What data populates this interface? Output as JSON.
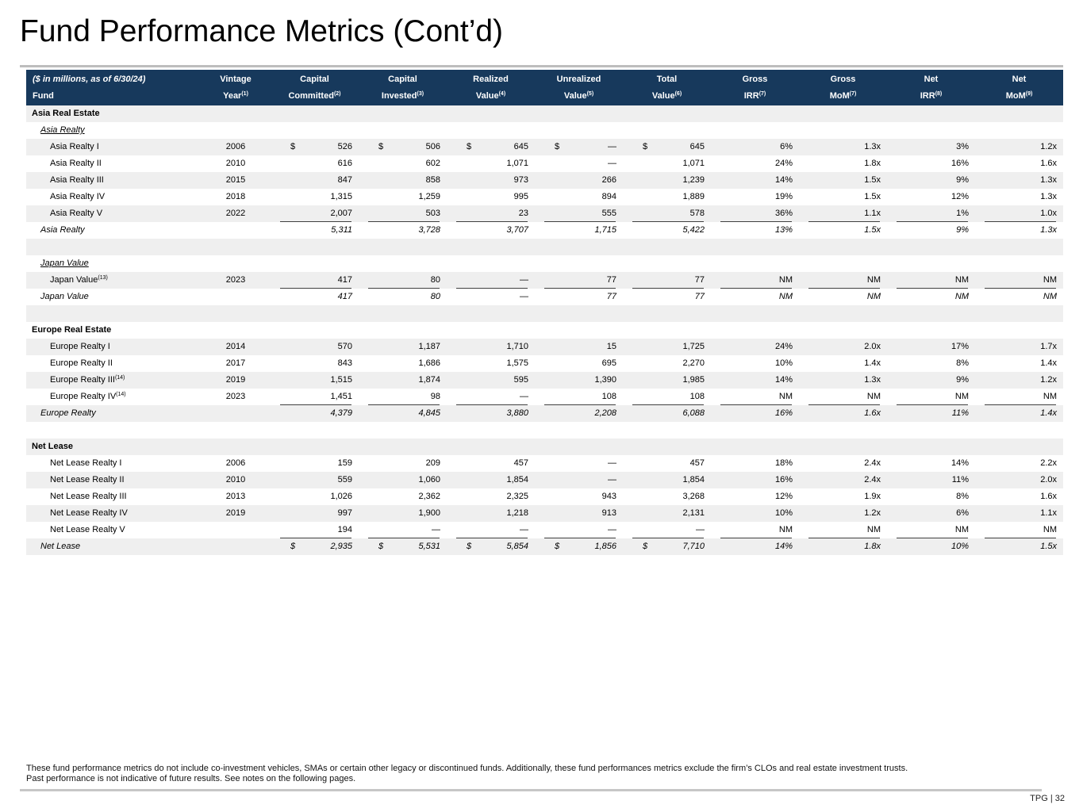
{
  "page": {
    "title": "Fund Performance Metrics (Cont’d)",
    "footnote_line1": "These fund performance metrics do not include co-investment vehicles, SMAs or certain other legacy or discontinued funds. Additionally, these fund performances metrics exclude the firm’s CLOs and real estate investment trusts.",
    "footnote_line2": "Past performance is not indicative of future results. See notes on the following pages.",
    "page_tag": "TPG | 32"
  },
  "colors": {
    "header_bg": "#17395c",
    "row_stripe": "#efefef",
    "rule_line": "#404040",
    "divider_gray": "#bdbdbd"
  },
  "table": {
    "header": {
      "corner_top": "($ in millions, as of 6/30/24)",
      "corner_bottom": "Fund",
      "columns": [
        {
          "top": "Vintage",
          "bottom": "Year",
          "sup": "(1)",
          "w": "vintage"
        },
        {
          "top": "Capital",
          "bottom": "Committed",
          "sup": "(2)",
          "w": "val"
        },
        {
          "top": "Capital",
          "bottom": "Invested",
          "sup": "(3)",
          "w": "val"
        },
        {
          "top": "Realized",
          "bottom": "Value",
          "sup": "(4)",
          "w": "val"
        },
        {
          "top": "Unrealized",
          "bottom": "Value",
          "sup": "(5)",
          "w": "val"
        },
        {
          "top": "Total",
          "bottom": "Value",
          "sup": "(6)",
          "w": "val"
        },
        {
          "top": "Gross",
          "bottom": "IRR",
          "sup": "(7)",
          "w": "val"
        },
        {
          "top": "Gross",
          "bottom": "MoM",
          "sup": "(7)",
          "w": "val"
        },
        {
          "top": "Net",
          "bottom": "IRR",
          "sup": "(8)",
          "w": "val"
        },
        {
          "top": "Net",
          "bottom": "MoM",
          "sup": "(9)",
          "w": "val"
        }
      ]
    },
    "rows": [
      {
        "type": "section",
        "name": "Asia Real Estate"
      },
      {
        "type": "subhead",
        "name": "Asia Realty"
      },
      {
        "type": "fund",
        "name": "Asia Realty I",
        "vintage": "2006",
        "dollars": true,
        "cells": [
          "526",
          "506",
          "645",
          "—",
          "645",
          "6%",
          "1.3x",
          "3%",
          "1.2x"
        ]
      },
      {
        "type": "fund",
        "name": "Asia Realty II",
        "vintage": "2010",
        "cells": [
          "616",
          "602",
          "1,071",
          "—",
          "1,071",
          "24%",
          "1.8x",
          "16%",
          "1.6x"
        ]
      },
      {
        "type": "fund",
        "name": "Asia Realty III",
        "vintage": "2015",
        "cells": [
          "847",
          "858",
          "973",
          "266",
          "1,239",
          "14%",
          "1.5x",
          "9%",
          "1.3x"
        ]
      },
      {
        "type": "fund",
        "name": "Asia Realty IV",
        "vintage": "2018",
        "cells": [
          "1,315",
          "1,259",
          "995",
          "894",
          "1,889",
          "19%",
          "1.5x",
          "12%",
          "1.3x"
        ]
      },
      {
        "type": "fund",
        "name": "Asia Realty V",
        "vintage": "2022",
        "rule": true,
        "cells": [
          "2,007",
          "503",
          "23",
          "555",
          "578",
          "36%",
          "1.1x",
          "1%",
          "1.0x"
        ]
      },
      {
        "type": "total",
        "name": "Asia Realty",
        "cells": [
          "5,311",
          "3,728",
          "3,707",
          "1,715",
          "5,422",
          "13%",
          "1.5x",
          "9%",
          "1.3x"
        ]
      },
      {
        "type": "spacer"
      },
      {
        "type": "subhead",
        "name": "Japan Value"
      },
      {
        "type": "fund",
        "name": "Japan Value",
        "sup": "(13)",
        "vintage": "2023",
        "rule": true,
        "cells": [
          "417",
          "80",
          "—",
          "77",
          "77",
          "NM",
          "NM",
          "NM",
          "NM"
        ]
      },
      {
        "type": "total",
        "name": "Japan Value",
        "cells": [
          "417",
          "80",
          "—",
          "77",
          "77",
          "NM",
          "NM",
          "NM",
          "NM"
        ]
      },
      {
        "type": "spacer"
      },
      {
        "type": "section",
        "name": "Europe Real Estate"
      },
      {
        "type": "fund",
        "name": "Europe Realty I",
        "vintage": "2014",
        "cells": [
          "570",
          "1,187",
          "1,710",
          "15",
          "1,725",
          "24%",
          "2.0x",
          "17%",
          "1.7x"
        ]
      },
      {
        "type": "fund",
        "name": "Europe Realty II",
        "vintage": "2017",
        "cells": [
          "843",
          "1,686",
          "1,575",
          "695",
          "2,270",
          "10%",
          "1.4x",
          "8%",
          "1.4x"
        ]
      },
      {
        "type": "fund",
        "name": "Europe Realty III",
        "sup": "(14)",
        "vintage": "2019",
        "cells": [
          "1,515",
          "1,874",
          "595",
          "1,390",
          "1,985",
          "14%",
          "1.3x",
          "9%",
          "1.2x"
        ]
      },
      {
        "type": "fund",
        "name": "Europe Realty IV",
        "sup": "(14)",
        "vintage": "2023",
        "rule": true,
        "cells": [
          "1,451",
          "98",
          "—",
          "108",
          "108",
          "NM",
          "NM",
          "NM",
          "NM"
        ]
      },
      {
        "type": "total",
        "name": "Europe Realty",
        "cells": [
          "4,379",
          "4,845",
          "3,880",
          "2,208",
          "6,088",
          "16%",
          "1.6x",
          "11%",
          "1.4x"
        ]
      },
      {
        "type": "spacer"
      },
      {
        "type": "section",
        "name": "Net Lease"
      },
      {
        "type": "fund",
        "name": "Net Lease Realty I",
        "vintage": "2006",
        "cells": [
          "159",
          "209",
          "457",
          "—",
          "457",
          "18%",
          "2.4x",
          "14%",
          "2.2x"
        ]
      },
      {
        "type": "fund",
        "name": "Net Lease Realty II",
        "vintage": "2010",
        "cells": [
          "559",
          "1,060",
          "1,854",
          "—",
          "1,854",
          "16%",
          "2.4x",
          "11%",
          "2.0x"
        ]
      },
      {
        "type": "fund",
        "name": "Net Lease Realty III",
        "vintage": "2013",
        "cells": [
          "1,026",
          "2,362",
          "2,325",
          "943",
          "3,268",
          "12%",
          "1.9x",
          "8%",
          "1.6x"
        ]
      },
      {
        "type": "fund",
        "name": "Net Lease Realty IV",
        "vintage": "2019",
        "cells": [
          "997",
          "1,900",
          "1,218",
          "913",
          "2,131",
          "10%",
          "1.2x",
          "6%",
          "1.1x"
        ]
      },
      {
        "type": "fund",
        "name": "Net Lease Realty V",
        "vintage": "",
        "rule": true,
        "cells": [
          "194",
          "—",
          "—",
          "—",
          "—",
          "NM",
          "NM",
          "NM",
          "NM"
        ]
      },
      {
        "type": "total",
        "name": "Net Lease",
        "dollars": true,
        "cells": [
          "2,935",
          "5,531",
          "5,854",
          "1,856",
          "7,710",
          "14%",
          "1.8x",
          "10%",
          "1.5x"
        ]
      }
    ]
  }
}
